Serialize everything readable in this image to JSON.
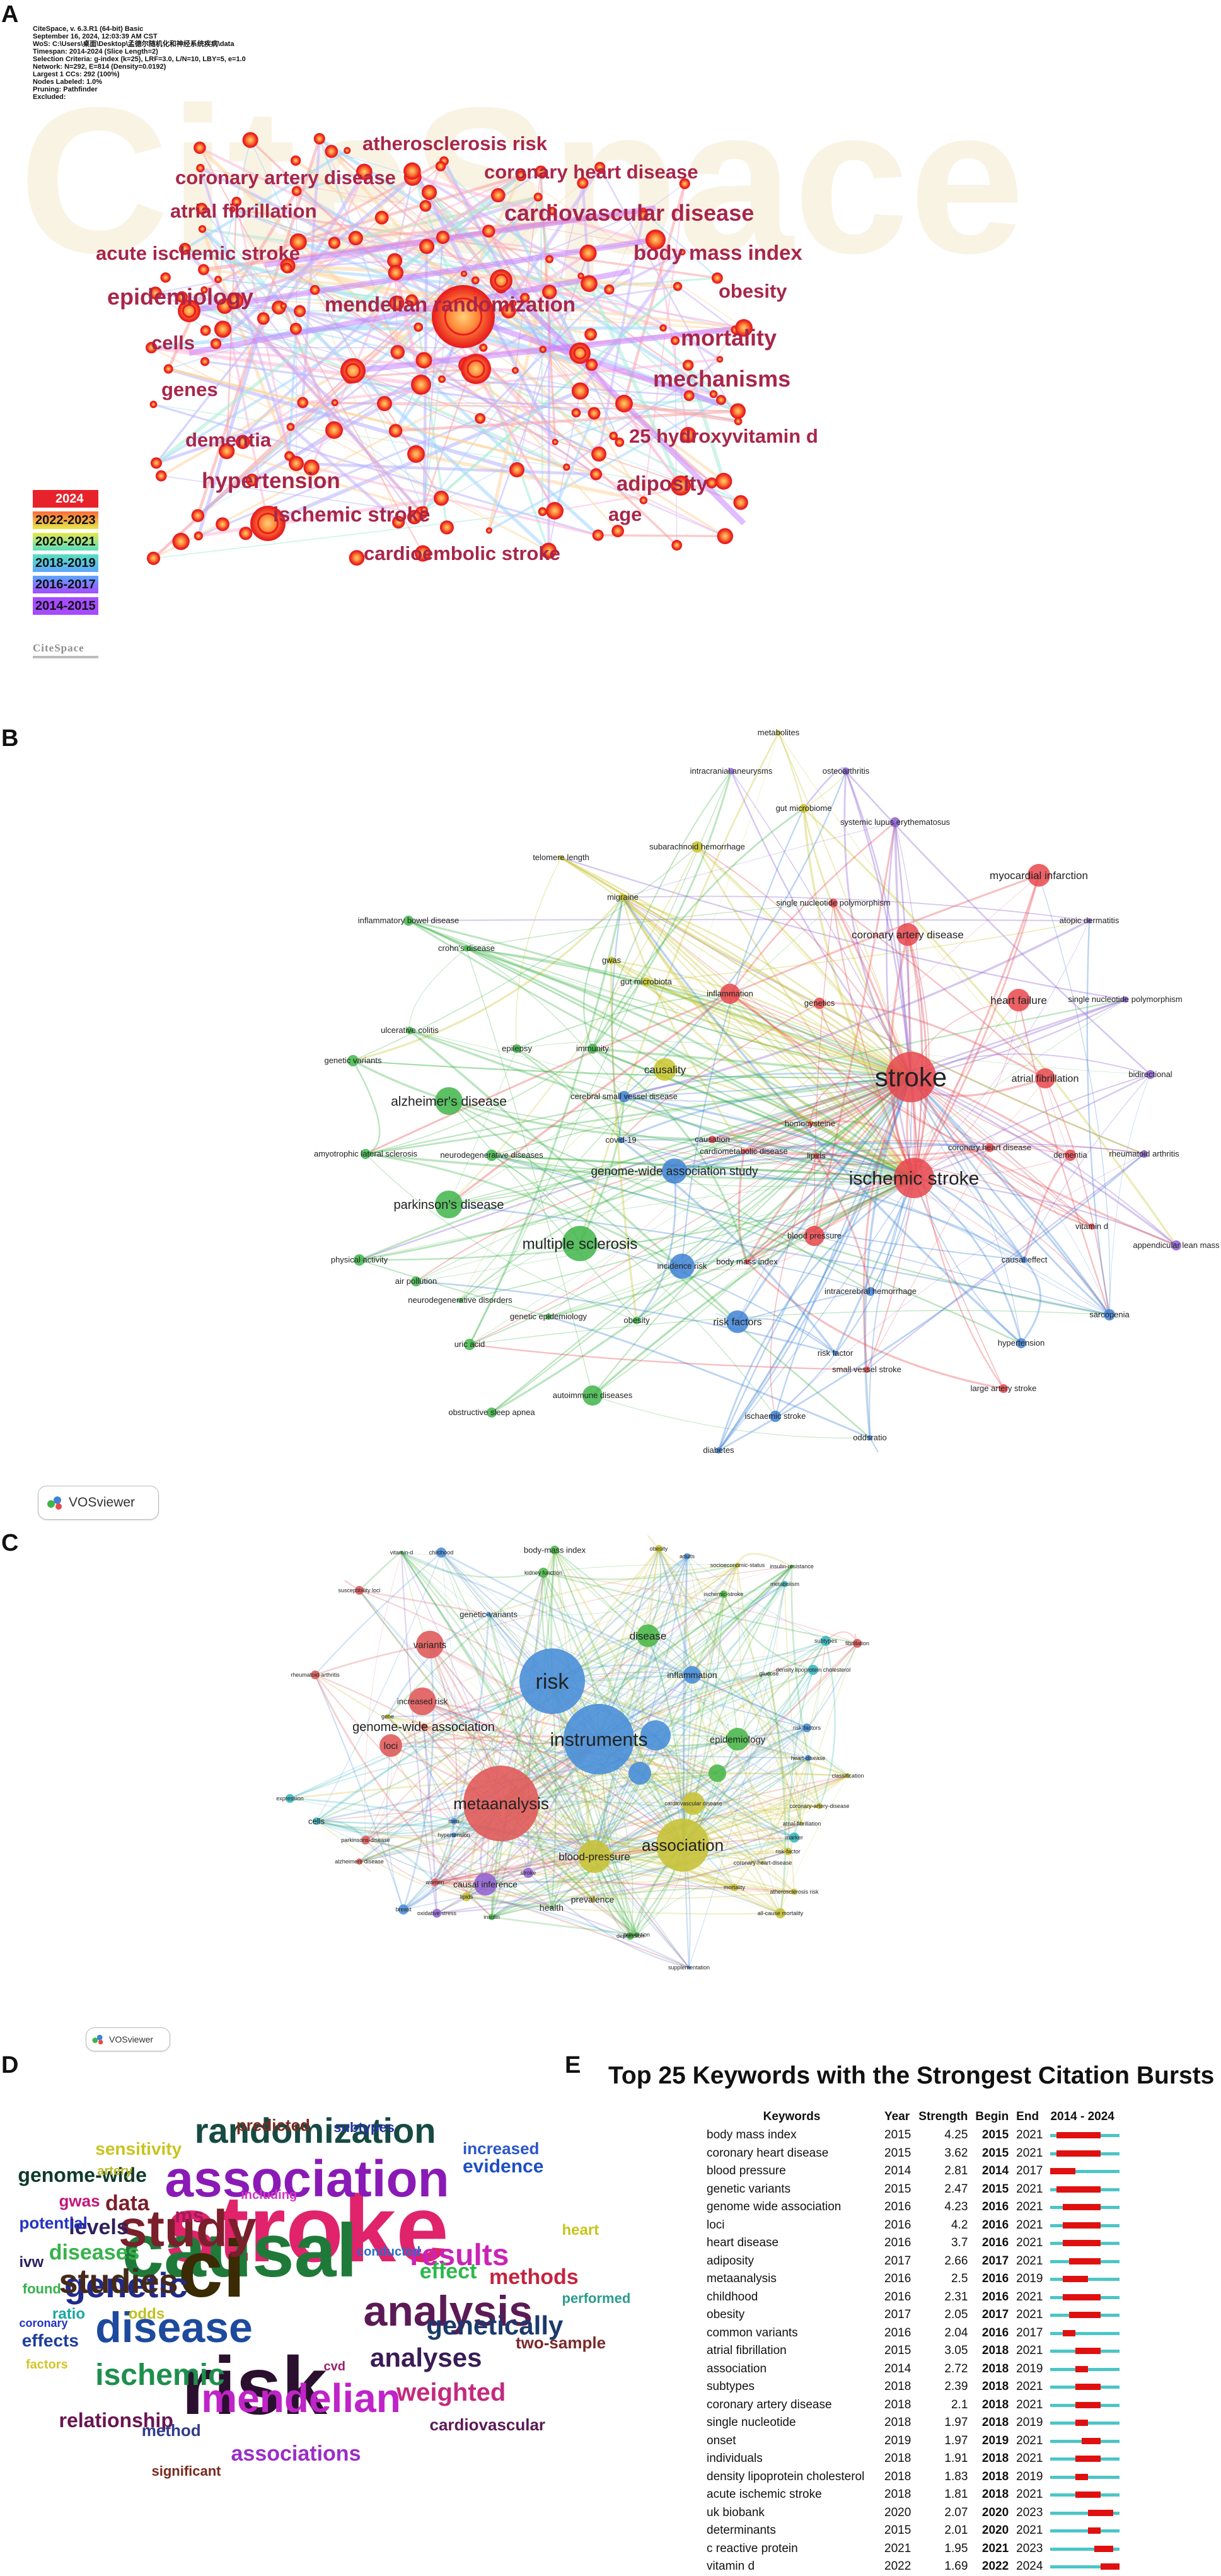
{
  "panels": {
    "a": "A",
    "b": "B",
    "c": "C",
    "d": "D",
    "e": "E"
  },
  "citespace": {
    "header_lines": [
      "CiteSpace, v. 6.3.R1 (64-bit) Basic",
      "September 16, 2024, 12:03:39 AM CST",
      "WoS: C:\\Users\\桌面\\Desktop\\孟德尔随机化和神经系统疾病\\data",
      "Timespan: 2014-2024 (Slice Length=2)",
      "Selection Criteria: g-index (k=25), LRF=3.0, L/N=10, LBY=5, e=1.0",
      "Network: N=292, E=814 (Density=0.0192)",
      "Largest 1 CCs: 292 (100%)",
      "Nodes Labeled: 1.0%",
      "Pruning: Pathfinder",
      "Excluded:"
    ],
    "watermark": "CiteSpace",
    "logo": "CiteSpace",
    "legend": [
      {
        "label": "2024",
        "color": "#e8222b"
      },
      {
        "label": "2022-2023",
        "color": "#ff6a3a"
      },
      {
        "label": "2020-2021",
        "color": "#e6e84a"
      },
      {
        "label": "2018-2019",
        "color": "#59e0c0"
      },
      {
        "label": "2016-2017",
        "color": "#5aa7ff"
      },
      {
        "label": "2014-2015",
        "color": "#a64bff"
      }
    ],
    "labels": [
      {
        "text": "atherosclerosis risk",
        "size": 31
      },
      {
        "text": "coronary artery disease",
        "size": 31
      },
      {
        "text": "coronary heart disease",
        "size": 31
      },
      {
        "text": "atrial fibrillation",
        "size": 31
      },
      {
        "text": "cardiovascular disease",
        "size": 36
      },
      {
        "text": "acute ischemic stroke",
        "size": 31
      },
      {
        "text": "body mass index",
        "size": 33
      },
      {
        "text": "epidemiology",
        "size": 36
      },
      {
        "text": "mendelian randomization",
        "size": 33
      },
      {
        "text": "obesity",
        "size": 31
      },
      {
        "text": "cells",
        "size": 31
      },
      {
        "text": "mortality",
        "size": 36
      },
      {
        "text": "genes",
        "size": 31
      },
      {
        "text": "mechanisms",
        "size": 36
      },
      {
        "text": "dementia",
        "size": 31
      },
      {
        "text": "25 hydroxyvitamin d",
        "size": 31
      },
      {
        "text": "hypertension",
        "size": 35
      },
      {
        "text": "adiposity",
        "size": 33
      },
      {
        "text": "ischemic stroke",
        "size": 33
      },
      {
        "text": "age",
        "size": 31
      },
      {
        "text": "cardioembolic stroke",
        "size": 31
      }
    ]
  },
  "vosviewer_b": {
    "logo": "VOSviewer",
    "colors": {
      "red": "#e8474c",
      "green": "#3fb54a",
      "blue": "#3f83d6",
      "yellow": "#c9c42a",
      "purple": "#8a5fd0",
      "cyan": "#35b6b4"
    },
    "labels": [
      "metabolites",
      "intracranial aneurysms",
      "osteoarthritis",
      "gut microbiome",
      "systemic lupus erythematosus",
      "subarachnoid hemorrhage",
      "telomere length",
      "myocardial infarction",
      "migraine",
      "single nucleotide polymorphism",
      "inflammatory bowel disease",
      "coronary artery disease",
      "atopic dermatitis",
      "crohn's disease",
      "gwas",
      "gut microbiota",
      "inflammation",
      "genetics",
      "heart failure",
      "single nucleotide polymorphism",
      "ulcerative colitis",
      "epilepsy",
      "immunity",
      "genetic variants",
      "causality",
      "stroke",
      "atrial fibrillation",
      "bidirectional",
      "alzheimer's disease",
      "cerebral small vessel disease",
      "homocysteine",
      "covid-19",
      "causation",
      "coronary heart disease",
      "amyotrophic lateral sclerosis",
      "neurodegenerative diseases",
      "cardiometabolic disease",
      "lipids",
      "rheumatoid arthritis",
      "genome-wide association study",
      "ischemic stroke",
      "dementia",
      "parkinson's disease",
      "vitamin d",
      "blood pressure",
      "multiple sclerosis",
      "appendicular lean mass",
      "physical activity",
      "body mass index",
      "causal effect",
      "incidence risk",
      "intracerebral hemorrhage",
      "air pollution",
      "sarcopenia",
      "neurodegenerative disorders",
      "genetic epidemiology",
      "obesity",
      "risk factors",
      "hypertension",
      "uric acid",
      "risk factor",
      "small vessel stroke",
      "autoimmune diseases",
      "large artery stroke",
      "obstructive sleep apnea",
      "ischaemic stroke",
      "oddsratio",
      "diabetes"
    ]
  },
  "vosviewer_c": {
    "logo": "VOSviewer",
    "labels": [
      "vitamin-d",
      "childhood",
      "body-mass index",
      "obesity",
      "adults",
      "socioeconomic-status",
      "insulin-resistance",
      "kidney function",
      "susceptibility loci",
      "ischemic-stroke",
      "metabolism",
      "genetic-variants",
      "disease",
      "subtypes",
      "fibrillation",
      "variants",
      "risk",
      "inflammation",
      "glucose",
      "density lipoprotein cholesterol",
      "rheumatoid-arthritis",
      "increased risk",
      "genome-wide association",
      "gene",
      "instruments",
      "epidemiology",
      "risk-factors",
      "loci",
      "heart-disease",
      "classification",
      "metaanalysis",
      "cardiovascular disease",
      "expression",
      "cells",
      "coronary-artery-disease",
      "association",
      "atrial-fibrillation",
      "marker",
      "parkinsons-disease",
      "risk-factor",
      "alzheimers-disease",
      "blood-pressure",
      "coronary-heart-disease",
      "stroke",
      "causal inference",
      "mortality",
      "atherosclerosis risk",
      "prevalence",
      "health",
      "all-cause mortality",
      "oxidative stress",
      "depression",
      "insulin",
      "prevention",
      "supplementation",
      "breast",
      "lipids",
      "women",
      "men",
      "hypertension"
    ]
  },
  "wordcloud": {
    "words": [
      {
        "text": "stroke",
        "size": 150,
        "color": "#e0236b"
      },
      {
        "text": "causal",
        "size": 120,
        "color": "#1f7a3a"
      },
      {
        "text": "ci",
        "size": 128,
        "color": "#3a2b05"
      },
      {
        "text": "risk",
        "size": 130,
        "color": "#2b0f2e"
      },
      {
        "text": "association",
        "size": 82,
        "color": "#8a1ab5"
      },
      {
        "text": "study",
        "size": 82,
        "color": "#7a1f2b"
      },
      {
        "text": "disease",
        "size": 68,
        "color": "#1d4a9c"
      },
      {
        "text": "analysis",
        "size": 68,
        "color": "#5b1a55"
      },
      {
        "text": "mendelian",
        "size": 64,
        "color": "#bf24c8"
      },
      {
        "text": "randomization",
        "size": 56,
        "color": "#164a42"
      },
      {
        "text": "genetic",
        "size": 56,
        "color": "#202a8c"
      },
      {
        "text": "studies",
        "size": 54,
        "color": "#452a1a"
      },
      {
        "text": "ischemic",
        "size": 48,
        "color": "#1e8f4d"
      },
      {
        "text": "results",
        "size": 48,
        "color": "#c924b5"
      },
      {
        "text": "genetically",
        "size": 42,
        "color": "#1b3a6b"
      },
      {
        "text": "analyses",
        "size": 42,
        "color": "#3a1b55"
      },
      {
        "text": "weighted",
        "size": 40,
        "color": "#c42a7e"
      },
      {
        "text": "relationship",
        "size": 32,
        "color": "#6a1450"
      },
      {
        "text": "effect",
        "size": 34,
        "color": "#2db84a"
      },
      {
        "text": "methods",
        "size": 34,
        "color": "#c42440"
      },
      {
        "text": "associations",
        "size": 34,
        "color": "#9b2dc7"
      },
      {
        "text": "genome-wide",
        "size": 32,
        "color": "#0f3a2b"
      },
      {
        "text": "levels",
        "size": 34,
        "color": "#2d1f5e"
      },
      {
        "text": "data",
        "size": 34,
        "color": "#7a1f2b"
      },
      {
        "text": "diseases",
        "size": 34,
        "color": "#36b24a"
      },
      {
        "text": "evidence",
        "size": 30,
        "color": "#1f4ec4"
      },
      {
        "text": "increased",
        "size": 26,
        "color": "#2c56c9"
      },
      {
        "text": "sensitivity",
        "size": 28,
        "color": "#c9c41e"
      },
      {
        "text": "ms",
        "size": 32,
        "color": "#a3175c"
      },
      {
        "text": "potential",
        "size": 26,
        "color": "#2233c4"
      },
      {
        "text": "gwas",
        "size": 26,
        "color": "#c2167a"
      },
      {
        "text": "ivw",
        "size": 24,
        "color": "#2b1f5e"
      },
      {
        "text": "effects",
        "size": 28,
        "color": "#1f3e9c"
      },
      {
        "text": "ratio",
        "size": 24,
        "color": "#1aa5a5"
      },
      {
        "text": "odds",
        "size": 24,
        "color": "#c0c023"
      },
      {
        "text": "method",
        "size": 26,
        "color": "#2f3b8c"
      },
      {
        "text": "two-sample",
        "size": 26,
        "color": "#7a2a2a"
      },
      {
        "text": "cardiovascular",
        "size": 26,
        "color": "#5b1a55"
      },
      {
        "text": "predicted",
        "size": 26,
        "color": "#7a2a1f"
      },
      {
        "text": "subtypes",
        "size": 22,
        "color": "#2233a0"
      },
      {
        "text": "artery",
        "size": 20,
        "color": "#b8b82a"
      },
      {
        "text": "including",
        "size": 20,
        "color": "#d236c8"
      },
      {
        "text": "heart",
        "size": 24,
        "color": "#c9c41e"
      },
      {
        "text": "conducted",
        "size": 20,
        "color": "#2d6bc9"
      },
      {
        "text": "performed",
        "size": 22,
        "color": "#2b9c8c"
      },
      {
        "text": "found",
        "size": 22,
        "color": "#36b24a"
      },
      {
        "text": "coronary",
        "size": 18,
        "color": "#2233c4"
      },
      {
        "text": "factors",
        "size": 20,
        "color": "#d5c52a"
      },
      {
        "text": "cvd",
        "size": 20,
        "color": "#9b1f6b"
      },
      {
        "text": "significant",
        "size": 22,
        "color": "#7a2a1f"
      }
    ]
  },
  "bursts": {
    "title": "Top 25 Keywords with the Strongest Citation Bursts",
    "columns": {
      "keywords": "Keywords",
      "year": "Year",
      "strength": "Strength",
      "begin": "Begin",
      "end": "End",
      "range": "2014 - 2024"
    },
    "colors": {
      "burst": "#e01010",
      "base": "#4bc6c6"
    },
    "range_start": 2014,
    "range_end": 2024,
    "rows": [
      {
        "keyword": "body mass index",
        "year": "2015",
        "strength": "4.25",
        "begin": "2015",
        "end": "2021"
      },
      {
        "keyword": "coronary heart disease",
        "year": "2015",
        "strength": "3.62",
        "begin": "2015",
        "end": "2021"
      },
      {
        "keyword": "blood pressure",
        "year": "2014",
        "strength": "2.81",
        "begin": "2014",
        "end": "2017"
      },
      {
        "keyword": "genetic variants",
        "year": "2015",
        "strength": "2.47",
        "begin": "2015",
        "end": "2021"
      },
      {
        "keyword": "genome wide association",
        "year": "2016",
        "strength": "4.23",
        "begin": "2016",
        "end": "2021"
      },
      {
        "keyword": "loci",
        "year": "2016",
        "strength": "4.2",
        "begin": "2016",
        "end": "2021"
      },
      {
        "keyword": "heart disease",
        "year": "2016",
        "strength": "3.7",
        "begin": "2016",
        "end": "2021"
      },
      {
        "keyword": "adiposity",
        "year": "2017",
        "strength": "2.66",
        "begin": "2017",
        "end": "2021"
      },
      {
        "keyword": "metaanalysis",
        "year": "2016",
        "strength": "2.5",
        "begin": "2016",
        "end": "2019"
      },
      {
        "keyword": "childhood",
        "year": "2016",
        "strength": "2.31",
        "begin": "2016",
        "end": "2021"
      },
      {
        "keyword": "obesity",
        "year": "2017",
        "strength": "2.05",
        "begin": "2017",
        "end": "2021"
      },
      {
        "keyword": "common variants",
        "year": "2016",
        "strength": "2.04",
        "begin": "2016",
        "end": "2017"
      },
      {
        "keyword": "atrial fibrillation",
        "year": "2015",
        "strength": "3.05",
        "begin": "2018",
        "end": "2021"
      },
      {
        "keyword": "association",
        "year": "2014",
        "strength": "2.72",
        "begin": "2018",
        "end": "2019"
      },
      {
        "keyword": "subtypes",
        "year": "2018",
        "strength": "2.39",
        "begin": "2018",
        "end": "2021"
      },
      {
        "keyword": "coronary artery disease",
        "year": "2018",
        "strength": "2.1",
        "begin": "2018",
        "end": "2021"
      },
      {
        "keyword": "single nucleotide",
        "year": "2018",
        "strength": "1.97",
        "begin": "2018",
        "end": "2019"
      },
      {
        "keyword": "onset",
        "year": "2019",
        "strength": "1.97",
        "begin": "2019",
        "end": "2021"
      },
      {
        "keyword": "individuals",
        "year": "2018",
        "strength": "1.91",
        "begin": "2018",
        "end": "2021"
      },
      {
        "keyword": "density lipoprotein cholesterol",
        "year": "2018",
        "strength": "1.83",
        "begin": "2018",
        "end": "2019"
      },
      {
        "keyword": "acute ischemic stroke",
        "year": "2018",
        "strength": "1.81",
        "begin": "2018",
        "end": "2021"
      },
      {
        "keyword": "uk biobank",
        "year": "2020",
        "strength": "2.07",
        "begin": "2020",
        "end": "2023"
      },
      {
        "keyword": "determinants",
        "year": "2015",
        "strength": "2.01",
        "begin": "2020",
        "end": "2021"
      },
      {
        "keyword": "c reactive protein",
        "year": "2021",
        "strength": "1.95",
        "begin": "2021",
        "end": "2023"
      },
      {
        "keyword": "vitamin d",
        "year": "2022",
        "strength": "1.69",
        "begin": "2022",
        "end": "2024"
      }
    ]
  }
}
